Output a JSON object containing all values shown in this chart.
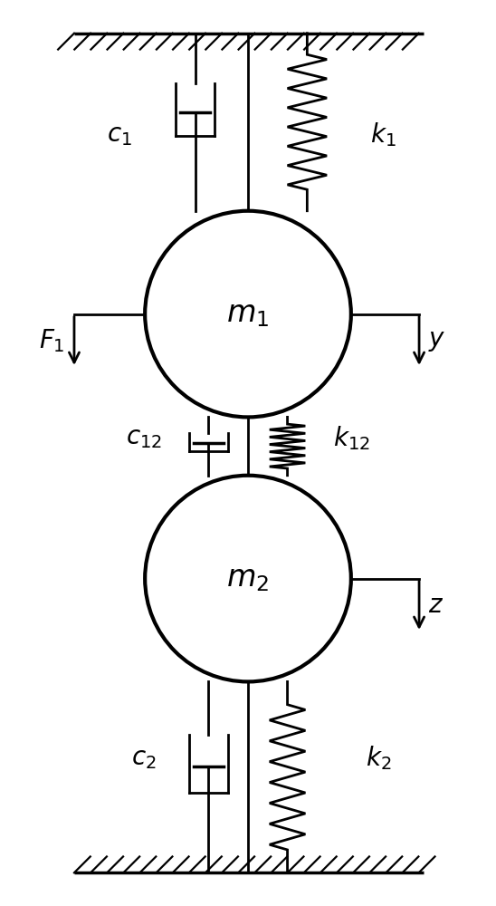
{
  "fig_width": 5.48,
  "fig_height": 10.0,
  "dpi": 100,
  "bg_color": "#ffffff",
  "line_color": "#000000",
  "line_width": 2.0,
  "m1_label": "$m_1$",
  "m2_label": "$m_2$",
  "c1_label": "$c_1$",
  "k1_label": "$k_1$",
  "c12_label": "$c_{12}$",
  "k12_label": "$k_{12}$",
  "c2_label": "$c_2$",
  "k2_label": "$k_2$",
  "F1_label": "$F_1$",
  "y_label": "$y$",
  "z_label": "$z$",
  "font_size": 20
}
